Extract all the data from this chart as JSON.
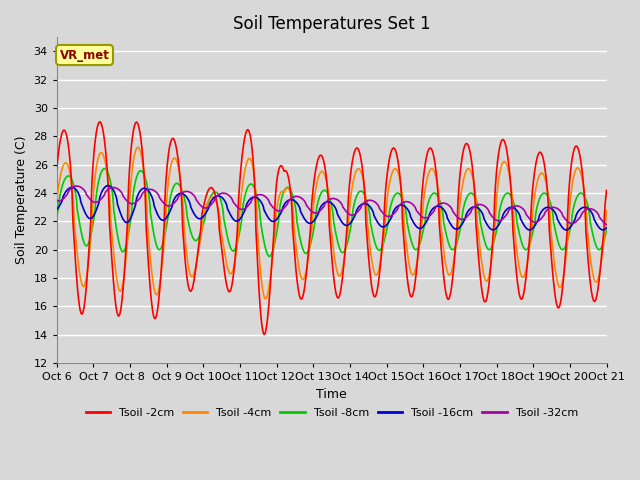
{
  "title": "Soil Temperatures Set 1",
  "xlabel": "Time",
  "ylabel": "Soil Temperature (C)",
  "ylim": [
    12,
    35
  ],
  "yticks": [
    12,
    14,
    16,
    18,
    20,
    22,
    24,
    26,
    28,
    30,
    32,
    34
  ],
  "background_color": "#d8d8d8",
  "plot_bg_color": "#d8d8d8",
  "grid_color": "#ffffff",
  "annotation_text": "VR_met",
  "annotation_bg": "#ffff99",
  "annotation_border": "#999900",
  "series_colors": [
    "#ff0000",
    "#ff8800",
    "#00cc00",
    "#0000cc",
    "#aa00aa"
  ],
  "series_labels": [
    "Tsoil -2cm",
    "Tsoil -4cm",
    "Tsoil -8cm",
    "Tsoil -16cm",
    "Tsoil -32cm"
  ],
  "xtick_labels": [
    "Oct 6",
    "Oct 7",
    "Oct 8",
    "Oct 9",
    "Oct 10",
    "Oct 11",
    "Oct 12",
    "Oct 13",
    "Oct 14",
    "Oct 15",
    "Oct 16",
    "Oct 17",
    "Oct 18",
    "Oct 19",
    "Oct 20",
    "Oct 21"
  ],
  "duration_days": 15,
  "n_points": 1440
}
